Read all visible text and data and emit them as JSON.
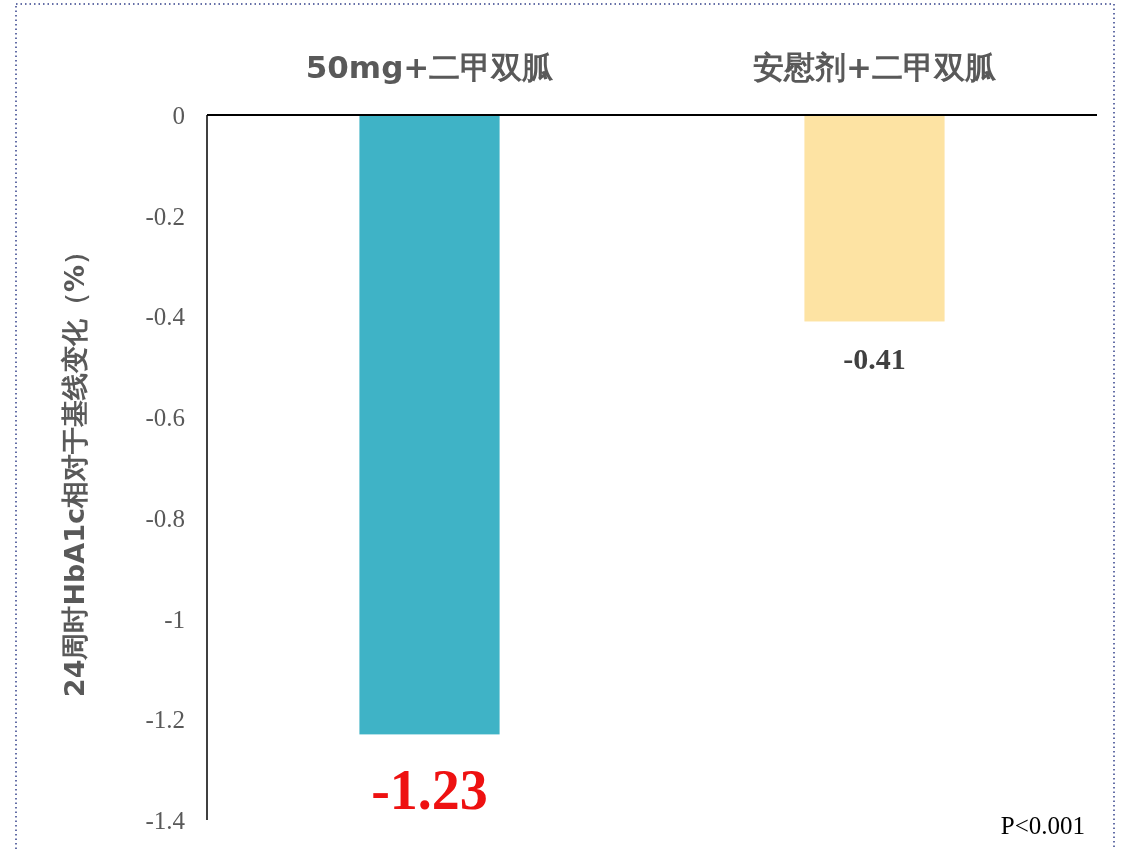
{
  "chart_data": {
    "type": "bar",
    "ylabel": "24周时HbA1c相对于基线变化（%）",
    "categories": [
      "50mg+二甲双胍",
      "安慰剂+二甲双胍"
    ],
    "values": [
      -1.23,
      -0.41
    ],
    "colors": [
      "#3fb3c6",
      "#fde3a3"
    ],
    "ylim": [
      -1.4,
      0
    ],
    "yticks": [
      0,
      -0.2,
      -0.4,
      -0.6,
      -0.8,
      -1,
      -1.2,
      -1.4
    ],
    "data_labels": true,
    "annotations": [
      "P<0.001"
    ]
  }
}
